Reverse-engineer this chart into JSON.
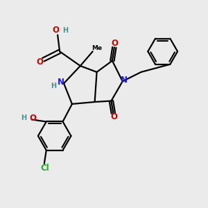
{
  "bg_color": "#ebebeb",
  "bond_color": "#000000",
  "bond_width": 1.6,
  "atom_colors": {
    "N": "#1a1aee",
    "O": "#cc0000",
    "Cl": "#22aa22",
    "H_label": "#4a9090"
  },
  "font_size_atom": 8.5,
  "font_size_small": 7.0,
  "xlim": [
    0,
    10
  ],
  "ylim": [
    0,
    10
  ]
}
